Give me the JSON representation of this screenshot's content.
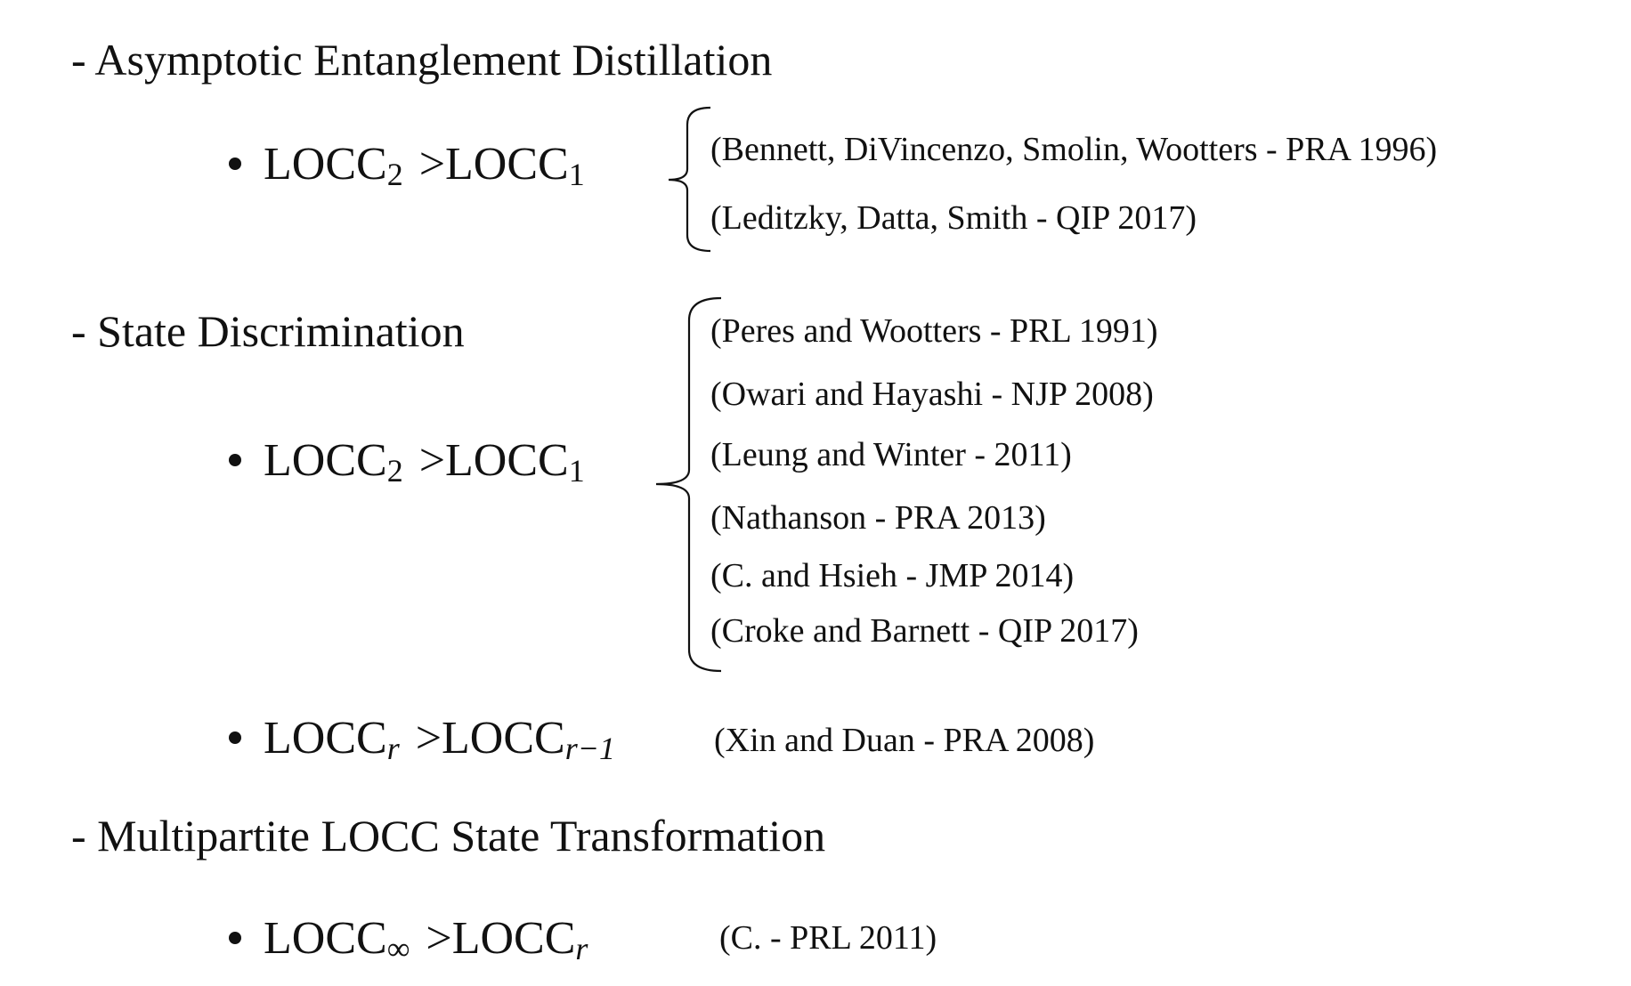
{
  "sections": [
    {
      "title": "- Asymptotic Entanglement Distillation",
      "items": [
        {
          "lhs": {
            "base": "LOCC",
            "sub": "2"
          },
          "relation": ">",
          "rhs": {
            "base": "LOCC",
            "sub": "1"
          },
          "refs": [
            "(Bennett, DiVincenzo, Smolin, Wootters - PRA 1996)",
            "(Leditzky, Datta, Smith - QIP 2017)"
          ]
        }
      ]
    },
    {
      "title": "- State Discrimination",
      "items": [
        {
          "lhs": {
            "base": "LOCC",
            "sub": "2"
          },
          "relation": ">",
          "rhs": {
            "base": "LOCC",
            "sub": "1"
          },
          "refs": [
            "(Peres and Wootters - PRL 1991)",
            "(Owari and Hayashi - NJP 2008)",
            "(Leung and Winter - 2011)",
            "(Nathanson - PRA 2013)",
            "(C. and Hsieh - JMP 2014)",
            "(Croke and Barnett - QIP 2017)"
          ]
        },
        {
          "lhs": {
            "base": "LOCC",
            "sub": "r"
          },
          "relation": ">",
          "rhs": {
            "base": "LOCC",
            "sub": "r−1"
          },
          "refs": [
            "(Xin and Duan - PRA 2008)"
          ]
        }
      ]
    },
    {
      "title": "- Multipartite LOCC State Transformation",
      "items": [
        {
          "lhs": {
            "base": "LOCC",
            "sub": "∞"
          },
          "relation": ">",
          "rhs": {
            "base": "LOCC",
            "sub": "r"
          },
          "refs": [
            "(C. - PRL 2011)"
          ]
        }
      ]
    }
  ]
}
